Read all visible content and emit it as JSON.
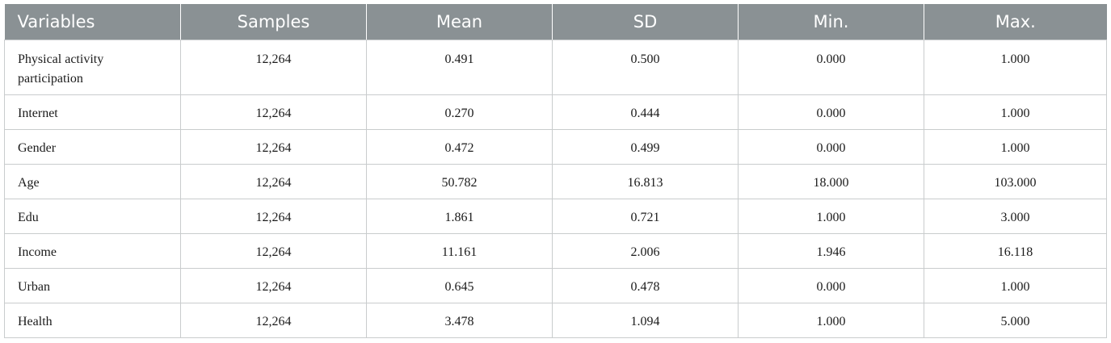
{
  "table": {
    "headers": [
      "Variables",
      "Samples",
      "Mean",
      "SD",
      "Min.",
      "Max."
    ],
    "rows": [
      [
        "Physical activity participation",
        "12,264",
        "0.491",
        "0.500",
        "0.000",
        "1.000"
      ],
      [
        "Internet",
        "12,264",
        "0.270",
        "0.444",
        "0.000",
        "1.000"
      ],
      [
        "Gender",
        "12,264",
        "0.472",
        "0.499",
        "0.000",
        "1.000"
      ],
      [
        "Age",
        "12,264",
        "50.782",
        "16.813",
        "18.000",
        "103.000"
      ],
      [
        "Edu",
        "12,264",
        "1.861",
        "0.721",
        "1.000",
        "3.000"
      ],
      [
        "Income",
        "12,264",
        "11.161",
        "2.006",
        "1.946",
        "16.118"
      ],
      [
        "Urban",
        "12,264",
        "0.645",
        "0.478",
        "0.000",
        "1.000"
      ],
      [
        "Health",
        "12,264",
        "3.478",
        "1.094",
        "1.000",
        "5.000"
      ]
    ]
  },
  "colors": {
    "header_bg": "#8a9194",
    "header_text": "#ffffff",
    "border": "#c9cccd"
  }
}
